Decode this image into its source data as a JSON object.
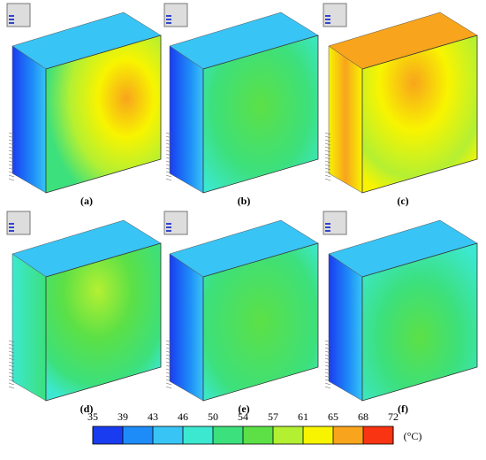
{
  "panels": [
    {
      "label": "(a)"
    },
    {
      "label": "(b)"
    },
    {
      "label": "(c)"
    },
    {
      "label": "(d)"
    },
    {
      "label": "(e)"
    },
    {
      "label": "(f)"
    }
  ],
  "colorbar": {
    "ticks": [
      35,
      39,
      43,
      46,
      50,
      54,
      57,
      61,
      65,
      68,
      72
    ],
    "colors": [
      "#1a3cf0",
      "#1e8cf8",
      "#38c4f4",
      "#3ce8d0",
      "#3ce07c",
      "#5ce046",
      "#b4f032",
      "#f8f400",
      "#f8a41c",
      "#f83412"
    ],
    "unit": "(°C)"
  }
}
